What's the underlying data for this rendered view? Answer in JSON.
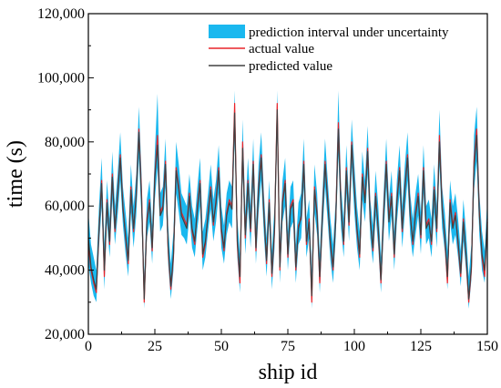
{
  "chart_data": {
    "type": "line",
    "xlabel": "ship id",
    "ylabel": "time (s)",
    "xlim": [
      0,
      150
    ],
    "ylim": [
      20000,
      120000
    ],
    "xticks": [
      0,
      25,
      50,
      75,
      100,
      125,
      150
    ],
    "yticks": [
      20000,
      40000,
      60000,
      80000,
      100000,
      120000
    ],
    "xtick_labels": [
      "0",
      "25",
      "50",
      "75",
      "100",
      "125",
      "150"
    ],
    "ytick_labels": [
      "20,000",
      "40,000",
      "60,000",
      "80,000",
      "100,000",
      "120,000"
    ],
    "grid": false,
    "legend_position": "top-right",
    "colors": {
      "band": "#1ab8ef",
      "actual": "#e8232a",
      "predicted": "#404040"
    },
    "legend": [
      "prediction interval under uncertainty",
      "actual value",
      "predicted value"
    ],
    "x": [
      0,
      1,
      2,
      3,
      4,
      5,
      6,
      7,
      8,
      9,
      10,
      11,
      12,
      13,
      14,
      15,
      16,
      17,
      18,
      19,
      20,
      21,
      22,
      23,
      24,
      25,
      26,
      27,
      28,
      29,
      30,
      31,
      32,
      33,
      34,
      35,
      36,
      37,
      38,
      39,
      40,
      41,
      42,
      43,
      44,
      45,
      46,
      47,
      48,
      49,
      50,
      51,
      52,
      53,
      54,
      55,
      56,
      57,
      58,
      59,
      60,
      61,
      62,
      63,
      64,
      65,
      66,
      67,
      68,
      69,
      70,
      71,
      72,
      73,
      74,
      75,
      76,
      77,
      78,
      79,
      80,
      81,
      82,
      83,
      84,
      85,
      86,
      87,
      88,
      89,
      90,
      91,
      92,
      93,
      94,
      95,
      96,
      97,
      98,
      99,
      100,
      101,
      102,
      103,
      104,
      105,
      106,
      107,
      108,
      109,
      110,
      111,
      112,
      113,
      114,
      115,
      116,
      117,
      118,
      119,
      120,
      121,
      122,
      123,
      124,
      125,
      126,
      127,
      128,
      129,
      130,
      131,
      132,
      133,
      134,
      135,
      136,
      137,
      138,
      139,
      140,
      141,
      142,
      143,
      144,
      145,
      146,
      147,
      148,
      149,
      150
    ],
    "series": [
      {
        "name": "actual value",
        "values": [
          48000,
          40000,
          36000,
          33000,
          52000,
          68000,
          38000,
          62000,
          48000,
          70000,
          52000,
          64000,
          76000,
          60000,
          50000,
          42000,
          66000,
          52000,
          64000,
          84000,
          64000,
          30000,
          56000,
          62000,
          46000,
          70000,
          82000,
          58000,
          60000,
          74000,
          46000,
          34000,
          44000,
          72000,
          66000,
          58000,
          56000,
          54000,
          64000,
          52000,
          48000,
          60000,
          68000,
          44000,
          48000,
          58000,
          66000,
          54000,
          62000,
          72000,
          52000,
          46000,
          58000,
          62000,
          60000,
          92000,
          48000,
          36000,
          80000,
          50000,
          68000,
          52000,
          74000,
          46000,
          66000,
          76000,
          58000,
          42000,
          62000,
          38000,
          52000,
          92000,
          40000,
          62000,
          68000,
          44000,
          60000,
          62000,
          40000,
          54000,
          56000,
          74000,
          48000,
          56000,
          30000,
          66000,
          58000,
          36000,
          58000,
          74000,
          62000,
          48000,
          40000,
          56000,
          86000,
          60000,
          48000,
          72000,
          54000,
          80000,
          66000,
          52000,
          44000,
          70000,
          62000,
          78000,
          56000,
          46000,
          64000,
          52000,
          36000,
          58000,
          74000,
          56000,
          64000,
          44000,
          62000,
          72000,
          52000,
          66000,
          76000,
          58000,
          48000,
          58000,
          64000,
          50000,
          72000,
          54000,
          56000,
          48000,
          66000,
          52000,
          82000,
          60000,
          50000,
          36000,
          62000,
          54000,
          58000,
          48000,
          38000,
          56000,
          44000,
          30000,
          40000,
          74000,
          84000,
          58000,
          44000,
          38000,
          56000
        ]
      },
      {
        "name": "predicted value",
        "values": [
          50000,
          41000,
          37000,
          34000,
          53000,
          67000,
          40000,
          61000,
          49000,
          69000,
          53000,
          63000,
          75000,
          59000,
          51000,
          43000,
          65000,
          53000,
          63000,
          83000,
          62000,
          31000,
          55000,
          61000,
          47000,
          69000,
          79000,
          57000,
          59000,
          73000,
          47000,
          35000,
          45000,
          71000,
          65000,
          57000,
          55000,
          53000,
          63000,
          53000,
          49000,
          59000,
          67000,
          45000,
          49000,
          57000,
          65000,
          55000,
          61000,
          71000,
          53000,
          47000,
          57000,
          61000,
          59000,
          89000,
          49000,
          38000,
          78000,
          51000,
          67000,
          53000,
          73000,
          47000,
          65000,
          75000,
          57000,
          43000,
          61000,
          39000,
          53000,
          90000,
          41000,
          61000,
          67000,
          45000,
          59000,
          61000,
          41000,
          53000,
          57000,
          73000,
          49000,
          55000,
          32000,
          65000,
          57000,
          38000,
          57000,
          73000,
          61000,
          49000,
          41000,
          55000,
          84000,
          59000,
          49000,
          71000,
          55000,
          79000,
          65000,
          53000,
          45000,
          69000,
          61000,
          77000,
          55000,
          47000,
          63000,
          53000,
          37000,
          57000,
          73000,
          55000,
          63000,
          45000,
          61000,
          71000,
          53000,
          65000,
          75000,
          57000,
          49000,
          57000,
          63000,
          51000,
          71000,
          53000,
          55000,
          49000,
          65000,
          53000,
          80000,
          59000,
          51000,
          38000,
          61000,
          53000,
          57000,
          49000,
          39000,
          55000,
          45000,
          31000,
          41000,
          72000,
          82000,
          57000,
          45000,
          40000,
          55000
        ]
      }
    ],
    "band": {
      "name": "prediction interval under uncertainty",
      "lower": [
        42000,
        36000,
        32000,
        30000,
        47000,
        60000,
        34000,
        55000,
        44000,
        62000,
        48000,
        57000,
        68000,
        54000,
        45000,
        38000,
        58000,
        47000,
        57000,
        75000,
        56000,
        28000,
        50000,
        55000,
        42000,
        62000,
        72000,
        52000,
        54000,
        66000,
        42000,
        31000,
        40000,
        64000,
        58000,
        51000,
        50000,
        48000,
        57000,
        47000,
        44000,
        53000,
        60000,
        40000,
        44000,
        52000,
        59000,
        49000,
        55000,
        64000,
        47000,
        42000,
        51000,
        55000,
        53000,
        81000,
        44000,
        33000,
        71000,
        45000,
        60000,
        47000,
        66000,
        42000,
        58000,
        68000,
        51000,
        38000,
        55000,
        34000,
        47000,
        82000,
        36000,
        55000,
        60000,
        40000,
        53000,
        55000,
        36000,
        48000,
        50000,
        66000,
        44000,
        50000,
        28000,
        58000,
        51000,
        33000,
        51000,
        66000,
        55000,
        43000,
        36000,
        50000,
        76000,
        53000,
        44000,
        64000,
        49000,
        72000,
        58000,
        47000,
        40000,
        62000,
        55000,
        70000,
        50000,
        42000,
        57000,
        47000,
        33000,
        51000,
        66000,
        49000,
        57000,
        40000,
        55000,
        64000,
        47000,
        58000,
        68000,
        51000,
        44000,
        51000,
        57000,
        45000,
        64000,
        48000,
        50000,
        44000,
        58000,
        47000,
        73000,
        53000,
        46000,
        34000,
        55000,
        48000,
        51000,
        44000,
        35000,
        49000,
        40000,
        28000,
        37000,
        65000,
        74000,
        51000,
        40000,
        36000,
        50000
      ],
      "upper": [
        58000,
        48000,
        44000,
        40000,
        60000,
        75000,
        48000,
        68000,
        56000,
        77000,
        60000,
        70000,
        83000,
        66000,
        58000,
        50000,
        73000,
        60000,
        70000,
        91000,
        70000,
        38000,
        62000,
        68000,
        54000,
        77000,
        95000,
        64000,
        66000,
        81000,
        54000,
        42000,
        52000,
        80000,
        73000,
        64000,
        62000,
        60000,
        70000,
        60000,
        56000,
        66000,
        75000,
        52000,
        56000,
        64000,
        73000,
        62000,
        68000,
        79000,
        60000,
        54000,
        64000,
        68000,
        66000,
        96000,
        56000,
        45000,
        87000,
        58000,
        75000,
        60000,
        81000,
        54000,
        73000,
        83000,
        64000,
        50000,
        68000,
        46000,
        60000,
        96000,
        48000,
        68000,
        75000,
        52000,
        66000,
        68000,
        48000,
        61000,
        64000,
        81000,
        56000,
        62000,
        40000,
        73000,
        64000,
        45000,
        64000,
        81000,
        68000,
        56000,
        48000,
        62000,
        96000,
        66000,
        56000,
        79000,
        62000,
        87000,
        73000,
        60000,
        52000,
        77000,
        68000,
        85000,
        62000,
        54000,
        71000,
        60000,
        44000,
        64000,
        81000,
        62000,
        71000,
        52000,
        68000,
        79000,
        60000,
        73000,
        83000,
        64000,
        56000,
        64000,
        70000,
        58000,
        79000,
        60000,
        62000,
        56000,
        73000,
        60000,
        90000,
        66000,
        58000,
        46000,
        68000,
        60000,
        64000,
        56000,
        46000,
        62000,
        52000,
        38000,
        48000,
        82000,
        91000,
        64000,
        52000,
        46000,
        62000
      ]
    }
  }
}
